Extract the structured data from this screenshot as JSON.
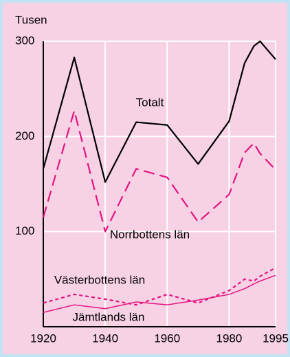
{
  "chart_data": {
    "type": "line",
    "ylabel": "Tusen",
    "x": [
      1920,
      1930,
      1940,
      1950,
      1960,
      1970,
      1980,
      1985,
      1988,
      1990,
      1995
    ],
    "series": [
      {
        "name": "Totalt",
        "color": "#000000",
        "style": "solid",
        "values": [
          166,
          283,
          152,
          215,
          212,
          171,
          216,
          277,
          295,
          300,
          281
        ]
      },
      {
        "name": "Norrbottens län",
        "color": "#e2147f",
        "style": "dashed",
        "values": [
          115,
          227,
          100,
          166,
          157,
          110,
          139,
          183,
          193,
          182,
          165
        ]
      },
      {
        "name": "Västerbottens län",
        "color": "#e2147f",
        "style": "dotted",
        "values": [
          25,
          34,
          29,
          23,
          34,
          25,
          38,
          50,
          48,
          53,
          62
        ]
      },
      {
        "name": "Jämtlands län",
        "color": "#e2147f",
        "style": "thin",
        "values": [
          15,
          23,
          19,
          26,
          23,
          28,
          34,
          40,
          45,
          48,
          54
        ]
      }
    ],
    "xlim": [
      1920,
      1995
    ],
    "xticks": [
      1920,
      1940,
      1960,
      1980,
      1995
    ],
    "ylim": [
      0,
      300
    ],
    "yticks": [
      100,
      200,
      300
    ],
    "grid": true
  }
}
